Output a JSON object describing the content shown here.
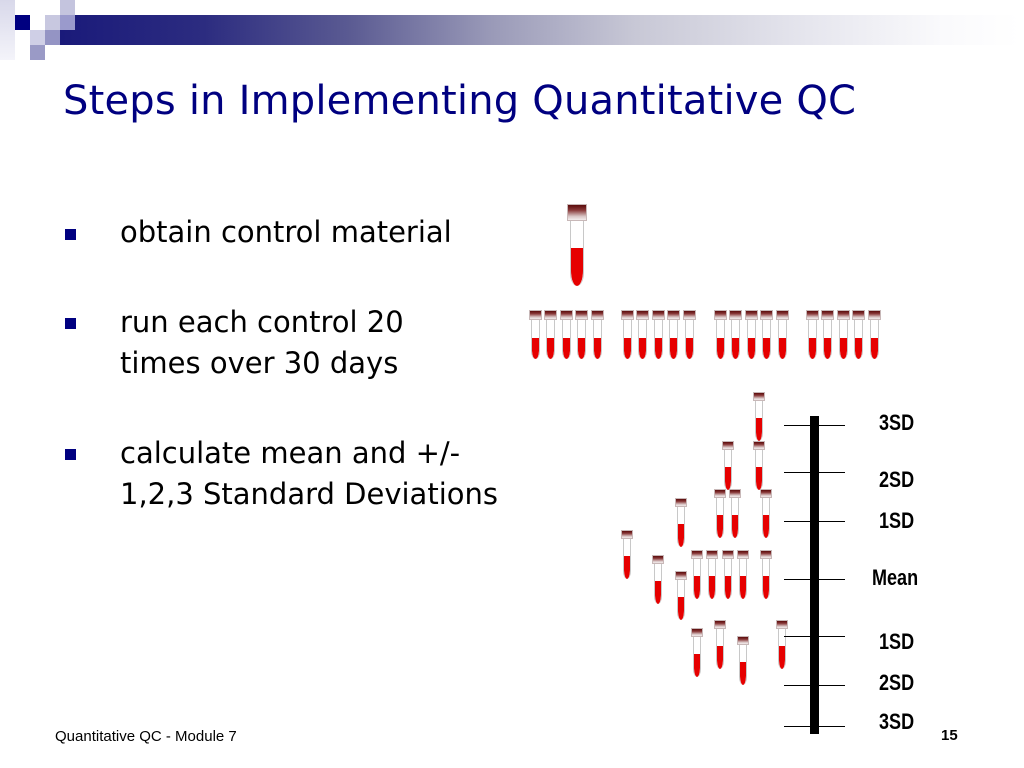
{
  "slide": {
    "title": "Steps in Implementing Quantitative QC",
    "bullets": [
      {
        "lines": [
          "obtain control  material"
        ]
      },
      {
        "lines": [
          "run each control 20",
          "times over 30 days"
        ]
      },
      {
        "lines": [
          "calculate mean and +/-",
          "1,2,3 Standard Deviations"
        ]
      }
    ],
    "footer": "Quantitative QC - Module 7",
    "page_number": "15"
  },
  "diagram": {
    "icons": {
      "tube": "test-tube-icon",
      "bullet": "square-bullet-icon"
    },
    "colors": {
      "title": "#000080",
      "bullet": "#000080",
      "blood": "#e60000",
      "cap": "#5a0a0a",
      "axis": "#000000"
    },
    "single_tube": {
      "label": "control material tube"
    },
    "tube_groups": {
      "groups": 4,
      "tubes_per_group": 5,
      "total": 20
    },
    "sd_scale": {
      "labels": [
        "3SD",
        "2SD",
        "1SD",
        "Mean",
        "1SD",
        "2SD",
        "3SD"
      ]
    },
    "distribution_tubes": 19
  }
}
